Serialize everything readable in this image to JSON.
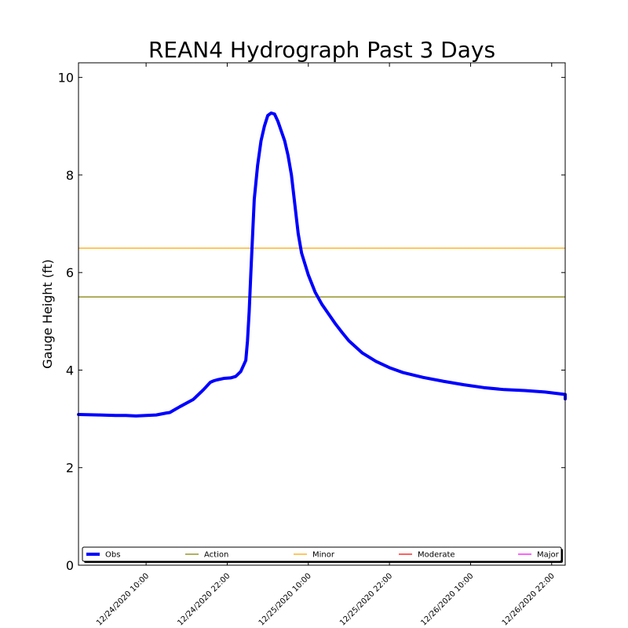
{
  "chart_data": {
    "type": "line",
    "title": "REAN4 Hydrograph Past 3 Days",
    "ylabel": "Gauge Height (ft)",
    "xlabel": "",
    "ylim": [
      0,
      10.3
    ],
    "yticks": [
      0,
      2,
      4,
      6,
      8,
      10
    ],
    "xlim": [
      "12/24/2020 00:00",
      "12/27/2020 00:00"
    ],
    "xticks": [
      "12/24/2020 10:00",
      "12/24/2020 22:00",
      "12/25/2020 10:00",
      "12/25/2020 22:00",
      "12/26/2020 10:00",
      "12/26/2020 22:00"
    ],
    "grid": false,
    "legend_placement": "bottom",
    "series": [
      {
        "name": "Obs",
        "color": "#0000ff",
        "x": [
          "12/24/2020 00:00",
          "12/24/2020 03:00",
          "12/24/2020 05:30",
          "12/24/2020 07:00",
          "12/24/2020 08:30",
          "12/24/2020 10:00",
          "12/24/2020 11:30",
          "12/24/2020 13:00",
          "12/24/2020 13:30",
          "12/24/2020 14:00",
          "12/24/2020 15:00",
          "12/24/2020 17:00",
          "12/24/2020 18:30",
          "12/24/2020 19:30",
          "12/24/2020 20:00",
          "12/24/2020 20:30",
          "12/24/2020 21:30",
          "12/24/2020 22:30",
          "12/24/2020 23:15",
          "12/25/2020 00:00",
          "12/25/2020 00:45",
          "12/25/2020 01:00",
          "12/25/2020 01:15",
          "12/25/2020 01:30",
          "12/25/2020 02:00",
          "12/25/2020 02:30",
          "12/25/2020 03:00",
          "12/25/2020 03:30",
          "12/25/2020 04:00",
          "12/25/2020 04:30",
          "12/25/2020 05:00",
          "12/25/2020 05:30",
          "12/25/2020 06:00",
          "12/25/2020 06:30",
          "12/25/2020 07:00",
          "12/25/2020 07:30",
          "12/25/2020 08:00",
          "12/25/2020 08:30",
          "12/25/2020 09:00",
          "12/25/2020 10:00",
          "12/25/2020 11:00",
          "12/25/2020 12:00",
          "12/25/2020 13:00",
          "12/25/2020 14:00",
          "12/25/2020 15:00",
          "12/25/2020 16:00",
          "12/25/2020 18:00",
          "12/25/2020 20:00",
          "12/25/2020 22:00",
          "12/26/2020 00:00",
          "12/26/2020 03:00",
          "12/26/2020 06:00",
          "12/26/2020 09:00",
          "12/26/2020 12:00",
          "12/26/2020 15:00",
          "12/26/2020 18:00",
          "12/26/2020 21:00",
          "12/27/2020 00:00",
          "12/27/2020 03:00",
          "12/27/2020 06:00"
        ],
        "values": [
          3.09,
          3.08,
          3.07,
          3.07,
          3.06,
          3.07,
          3.08,
          3.12,
          3.13,
          3.17,
          3.25,
          3.4,
          3.6,
          3.75,
          3.78,
          3.8,
          3.83,
          3.84,
          3.87,
          3.97,
          4.2,
          4.6,
          5.2,
          6.0,
          7.5,
          8.2,
          8.7,
          9.0,
          9.22,
          9.27,
          9.25,
          9.1,
          8.9,
          8.7,
          8.4,
          8.0,
          7.4,
          6.8,
          6.4,
          5.95,
          5.6,
          5.35,
          5.15,
          4.95,
          4.77,
          4.6,
          4.35,
          4.18,
          4.05,
          3.95,
          3.85,
          3.77,
          3.7,
          3.64,
          3.6,
          3.58,
          3.55,
          3.5,
          3.46,
          3.41
        ]
      },
      {
        "name": "Action",
        "color": "#808000",
        "value": 5.5
      },
      {
        "name": "Minor",
        "color": "#ffa500",
        "value": 6.5
      },
      {
        "name": "Moderate",
        "color": "#ff0000"
      },
      {
        "name": "Major",
        "color": "#ff00ff"
      }
    ]
  }
}
